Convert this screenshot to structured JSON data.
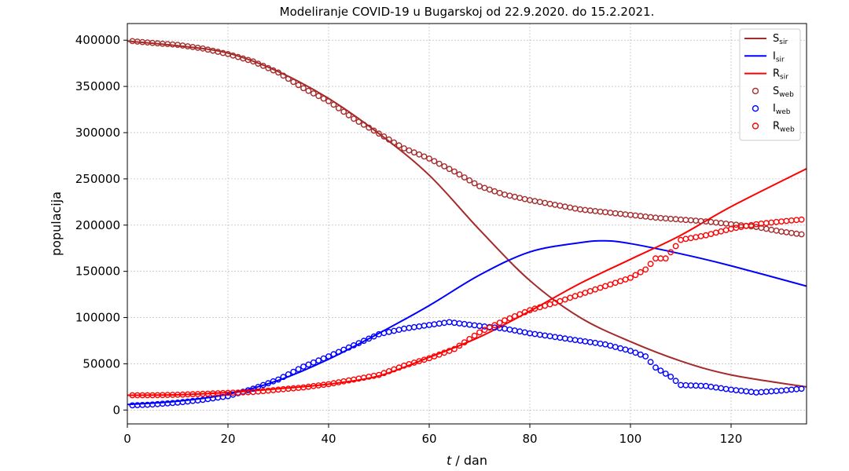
{
  "chart_data": {
    "type": "line",
    "title": "Modeliranje COVID-19 u Bugarskoj od 22.9.2020. do 15.2.2021.",
    "xlabel_italic": "t",
    "xlabel_rest": " / dan",
    "ylabel": "populacija",
    "xlim": [
      0,
      135
    ],
    "ylim": [
      -15000,
      418000
    ],
    "xticks": [
      0,
      20,
      40,
      60,
      80,
      100,
      120
    ],
    "yticks": [
      0,
      50000,
      100000,
      150000,
      200000,
      250000,
      300000,
      350000,
      400000
    ],
    "grid": true,
    "legend_position": "upper right",
    "model_series": [
      {
        "name_main": "S",
        "name_sub": "sir",
        "color": "#a52a2a",
        "x": [
          0,
          10,
          20,
          30,
          40,
          50,
          60,
          70,
          80,
          90,
          100,
          110,
          120,
          135
        ],
        "y": [
          399000,
          394000,
          386000,
          366000,
          337000,
          299000,
          254000,
          195000,
          140000,
          100000,
          74000,
          53000,
          38000,
          25000
        ]
      },
      {
        "name_main": "I",
        "name_sub": "sir",
        "color": "#0000ff",
        "x": [
          0,
          10,
          20,
          30,
          40,
          50,
          60,
          70,
          80,
          90,
          95,
          100,
          110,
          120,
          135
        ],
        "y": [
          6000,
          9500,
          17000,
          32000,
          55000,
          83000,
          113000,
          146000,
          171000,
          181000,
          183000,
          180000,
          169000,
          156000,
          134000
        ]
      },
      {
        "name_main": "R",
        "name_sub": "sir",
        "color": "#ff0000",
        "x": [
          0,
          10,
          20,
          30,
          40,
          50,
          60,
          70,
          80,
          90,
          100,
          110,
          120,
          135
        ],
        "y": [
          16000,
          16500,
          19000,
          23000,
          28000,
          37000,
          57000,
          79000,
          107000,
          137000,
          163000,
          189000,
          220000,
          261000
        ]
      }
    ],
    "web_series": [
      {
        "name_main": "S",
        "name_sub": "web",
        "color": "#a52a2a",
        "x": [
          1,
          5,
          10,
          15,
          20,
          25,
          30,
          35,
          40,
          45,
          50,
          55,
          60,
          65,
          70,
          75,
          80,
          85,
          90,
          95,
          100,
          105,
          110,
          115,
          120,
          125,
          130,
          134
        ],
        "y": [
          399000,
          397000,
          395000,
          391000,
          385000,
          377000,
          365000,
          348000,
          334000,
          315000,
          299000,
          283000,
          272000,
          258000,
          242000,
          233000,
          227000,
          222000,
          217000,
          214000,
          211000,
          208000,
          206000,
          204000,
          201000,
          198000,
          193000,
          190000
        ]
      },
      {
        "name_main": "I",
        "name_sub": "web",
        "color": "#0000ff",
        "x": [
          1,
          5,
          10,
          15,
          20,
          25,
          30,
          35,
          40,
          45,
          50,
          55,
          60,
          64,
          70,
          75,
          80,
          85,
          90,
          95,
          100,
          103,
          105,
          108,
          110,
          115,
          120,
          125,
          130,
          134
        ],
        "y": [
          5000,
          6000,
          8000,
          11000,
          15000,
          23000,
          33000,
          47000,
          58000,
          70000,
          82000,
          88000,
          92000,
          95000,
          91000,
          88000,
          83000,
          79000,
          75000,
          71000,
          64000,
          58000,
          46000,
          36000,
          27000,
          26000,
          22000,
          19000,
          21000,
          23000
        ]
      },
      {
        "name_main": "R",
        "name_sub": "web",
        "color": "#ff0000",
        "x": [
          1,
          5,
          10,
          15,
          20,
          25,
          30,
          35,
          40,
          45,
          50,
          55,
          60,
          65,
          70,
          75,
          80,
          85,
          90,
          95,
          100,
          103,
          105,
          107,
          110,
          115,
          120,
          125,
          130,
          134
        ],
        "y": [
          16000,
          16000,
          16500,
          17500,
          18500,
          19500,
          22000,
          24500,
          28000,
          33000,
          38000,
          48000,
          56000,
          66000,
          84000,
          97000,
          108000,
          116000,
          125000,
          134000,
          143000,
          152000,
          164000,
          164000,
          184000,
          189000,
          196000,
          201000,
          204000,
          206000
        ]
      }
    ]
  }
}
